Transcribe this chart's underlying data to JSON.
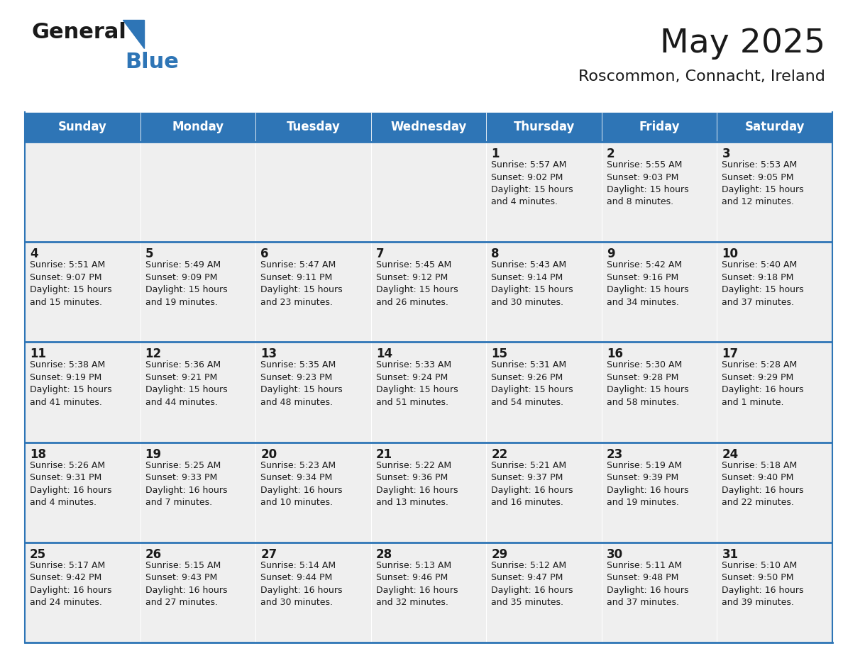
{
  "title": "May 2025",
  "subtitle": "Roscommon, Connacht, Ireland",
  "header_bg": "#2E75B6",
  "header_text_color": "#FFFFFF",
  "cell_bg_light": "#EFEFEF",
  "border_color": "#2E75B6",
  "text_color": "#1a1a1a",
  "day_headers": [
    "Sunday",
    "Monday",
    "Tuesday",
    "Wednesday",
    "Thursday",
    "Friday",
    "Saturday"
  ],
  "weeks": [
    [
      {
        "day": "",
        "info": ""
      },
      {
        "day": "",
        "info": ""
      },
      {
        "day": "",
        "info": ""
      },
      {
        "day": "",
        "info": ""
      },
      {
        "day": "1",
        "info": "Sunrise: 5:57 AM\nSunset: 9:02 PM\nDaylight: 15 hours\nand 4 minutes."
      },
      {
        "day": "2",
        "info": "Sunrise: 5:55 AM\nSunset: 9:03 PM\nDaylight: 15 hours\nand 8 minutes."
      },
      {
        "day": "3",
        "info": "Sunrise: 5:53 AM\nSunset: 9:05 PM\nDaylight: 15 hours\nand 12 minutes."
      }
    ],
    [
      {
        "day": "4",
        "info": "Sunrise: 5:51 AM\nSunset: 9:07 PM\nDaylight: 15 hours\nand 15 minutes."
      },
      {
        "day": "5",
        "info": "Sunrise: 5:49 AM\nSunset: 9:09 PM\nDaylight: 15 hours\nand 19 minutes."
      },
      {
        "day": "6",
        "info": "Sunrise: 5:47 AM\nSunset: 9:11 PM\nDaylight: 15 hours\nand 23 minutes."
      },
      {
        "day": "7",
        "info": "Sunrise: 5:45 AM\nSunset: 9:12 PM\nDaylight: 15 hours\nand 26 minutes."
      },
      {
        "day": "8",
        "info": "Sunrise: 5:43 AM\nSunset: 9:14 PM\nDaylight: 15 hours\nand 30 minutes."
      },
      {
        "day": "9",
        "info": "Sunrise: 5:42 AM\nSunset: 9:16 PM\nDaylight: 15 hours\nand 34 minutes."
      },
      {
        "day": "10",
        "info": "Sunrise: 5:40 AM\nSunset: 9:18 PM\nDaylight: 15 hours\nand 37 minutes."
      }
    ],
    [
      {
        "day": "11",
        "info": "Sunrise: 5:38 AM\nSunset: 9:19 PM\nDaylight: 15 hours\nand 41 minutes."
      },
      {
        "day": "12",
        "info": "Sunrise: 5:36 AM\nSunset: 9:21 PM\nDaylight: 15 hours\nand 44 minutes."
      },
      {
        "day": "13",
        "info": "Sunrise: 5:35 AM\nSunset: 9:23 PM\nDaylight: 15 hours\nand 48 minutes."
      },
      {
        "day": "14",
        "info": "Sunrise: 5:33 AM\nSunset: 9:24 PM\nDaylight: 15 hours\nand 51 minutes."
      },
      {
        "day": "15",
        "info": "Sunrise: 5:31 AM\nSunset: 9:26 PM\nDaylight: 15 hours\nand 54 minutes."
      },
      {
        "day": "16",
        "info": "Sunrise: 5:30 AM\nSunset: 9:28 PM\nDaylight: 15 hours\nand 58 minutes."
      },
      {
        "day": "17",
        "info": "Sunrise: 5:28 AM\nSunset: 9:29 PM\nDaylight: 16 hours\nand 1 minute."
      }
    ],
    [
      {
        "day": "18",
        "info": "Sunrise: 5:26 AM\nSunset: 9:31 PM\nDaylight: 16 hours\nand 4 minutes."
      },
      {
        "day": "19",
        "info": "Sunrise: 5:25 AM\nSunset: 9:33 PM\nDaylight: 16 hours\nand 7 minutes."
      },
      {
        "day": "20",
        "info": "Sunrise: 5:23 AM\nSunset: 9:34 PM\nDaylight: 16 hours\nand 10 minutes."
      },
      {
        "day": "21",
        "info": "Sunrise: 5:22 AM\nSunset: 9:36 PM\nDaylight: 16 hours\nand 13 minutes."
      },
      {
        "day": "22",
        "info": "Sunrise: 5:21 AM\nSunset: 9:37 PM\nDaylight: 16 hours\nand 16 minutes."
      },
      {
        "day": "23",
        "info": "Sunrise: 5:19 AM\nSunset: 9:39 PM\nDaylight: 16 hours\nand 19 minutes."
      },
      {
        "day": "24",
        "info": "Sunrise: 5:18 AM\nSunset: 9:40 PM\nDaylight: 16 hours\nand 22 minutes."
      }
    ],
    [
      {
        "day": "25",
        "info": "Sunrise: 5:17 AM\nSunset: 9:42 PM\nDaylight: 16 hours\nand 24 minutes."
      },
      {
        "day": "26",
        "info": "Sunrise: 5:15 AM\nSunset: 9:43 PM\nDaylight: 16 hours\nand 27 minutes."
      },
      {
        "day": "27",
        "info": "Sunrise: 5:14 AM\nSunset: 9:44 PM\nDaylight: 16 hours\nand 30 minutes."
      },
      {
        "day": "28",
        "info": "Sunrise: 5:13 AM\nSunset: 9:46 PM\nDaylight: 16 hours\nand 32 minutes."
      },
      {
        "day": "29",
        "info": "Sunrise: 5:12 AM\nSunset: 9:47 PM\nDaylight: 16 hours\nand 35 minutes."
      },
      {
        "day": "30",
        "info": "Sunrise: 5:11 AM\nSunset: 9:48 PM\nDaylight: 16 hours\nand 37 minutes."
      },
      {
        "day": "31",
        "info": "Sunrise: 5:10 AM\nSunset: 9:50 PM\nDaylight: 16 hours\nand 39 minutes."
      }
    ]
  ],
  "title_fontsize": 34,
  "subtitle_fontsize": 16,
  "header_fontsize": 12,
  "day_num_fontsize": 12,
  "info_fontsize": 9
}
